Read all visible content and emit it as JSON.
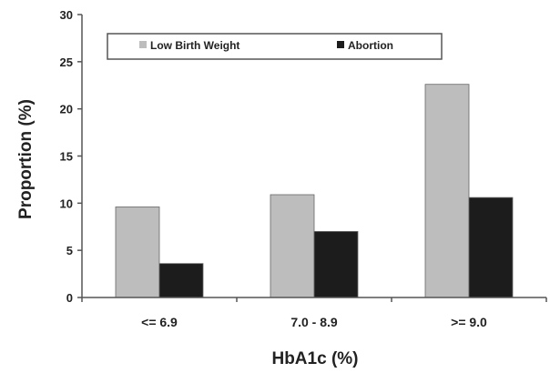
{
  "chart_data": {
    "type": "bar",
    "categories": [
      "<= 6.9",
      "7.0 - 8.9",
      ">= 9.0"
    ],
    "series": [
      {
        "name": "Low Birth Weight",
        "values": [
          9.6,
          10.9,
          22.6
        ],
        "color": "#bdbdbd"
      },
      {
        "name": "Abortion",
        "values": [
          3.6,
          7.0,
          10.6
        ],
        "color": "#1c1c1c"
      }
    ],
    "xlabel": "HbA1c (%)",
    "ylabel": "Proportion (%)",
    "ylim": [
      0,
      30
    ],
    "yticks": [
      "0",
      "5",
      "10",
      "15",
      "20",
      "25",
      "30"
    ],
    "grid": false,
    "legend": "top-left, inside plot, horizontal"
  }
}
